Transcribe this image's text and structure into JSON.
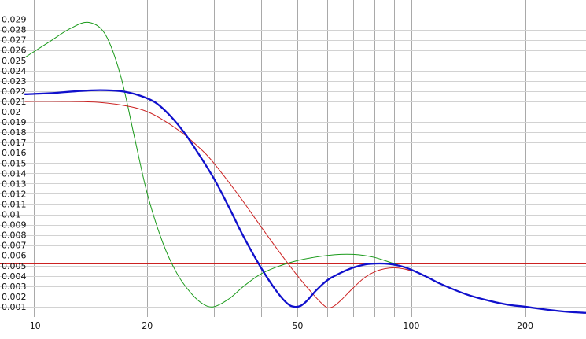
{
  "chart_data": {
    "type": "line",
    "x_scale": "log",
    "xlim": [
      9.5,
      290
    ],
    "ylim": [
      0,
      0.0305
    ],
    "grid": true,
    "x_ticks": [
      10,
      20,
      30,
      40,
      50,
      60,
      70,
      80,
      90,
      100,
      200
    ],
    "x_tick_labels": [
      {
        "value": 10,
        "label": "10"
      },
      {
        "value": 20,
        "label": "20"
      },
      {
        "value": 50,
        "label": "50"
      },
      {
        "value": 100,
        "label": "100"
      },
      {
        "value": 200,
        "label": "200"
      }
    ],
    "y_ticks": [
      0.001,
      0.002,
      0.003,
      0.004,
      0.005,
      0.006,
      0.007,
      0.008,
      0.009,
      0.01,
      0.011,
      0.012,
      0.013,
      0.014,
      0.015,
      0.016,
      0.017,
      0.018,
      0.019,
      0.02,
      0.021,
      0.022,
      0.023,
      0.024,
      0.025,
      0.026,
      0.027,
      0.028,
      0.029
    ],
    "y_tick_labels": [
      "0.001",
      "0.002",
      "0.003",
      "0.004",
      "0.005",
      "0.006",
      "0.007",
      "0.008",
      "0.009",
      "0.01",
      "0.011",
      "0.012",
      "0.013",
      "0.014",
      "0.015",
      "0.016",
      "0.017",
      "0.018",
      "0.019",
      "0.02",
      "0.021",
      "0.022",
      "0.023",
      "0.024",
      "0.025",
      "0.026",
      "0.027",
      "0.028",
      "0.029"
    ],
    "hlines": [
      {
        "y": 0.0053,
        "color": "#cc2222"
      },
      {
        "y": 0.0052,
        "color": "#cc2222"
      }
    ],
    "series": [
      {
        "color": "#1a9a1a",
        "stroke_width": 1,
        "x": [
          9.5,
          11,
          12.5,
          14,
          15.5,
          17,
          18.5,
          20,
          22,
          24,
          26,
          28,
          30,
          33,
          36,
          40,
          45,
          50,
          55,
          60,
          65,
          70,
          75,
          80,
          85,
          90,
          95
        ],
        "y": [
          0.0253,
          0.0268,
          0.0281,
          0.0287,
          0.0275,
          0.0235,
          0.0175,
          0.012,
          0.0072,
          0.0042,
          0.0024,
          0.0013,
          0.001,
          0.0018,
          0.003,
          0.0042,
          0.005,
          0.0055,
          0.0058,
          0.006,
          0.0061,
          0.0061,
          0.006,
          0.0058,
          0.0055,
          0.0052,
          0.0049
        ]
      },
      {
        "color": "#cc2222",
        "stroke_width": 1,
        "x": [
          9.5,
          12,
          15,
          18,
          20,
          22,
          25,
          28,
          30,
          35,
          40,
          45,
          50,
          55,
          58,
          60,
          62,
          65,
          70,
          75,
          80,
          85,
          90,
          95,
          100
        ],
        "y": [
          0.021,
          0.021,
          0.0209,
          0.0205,
          0.02,
          0.0192,
          0.0178,
          0.0162,
          0.015,
          0.0118,
          0.0088,
          0.0062,
          0.004,
          0.0022,
          0.0013,
          0.0009,
          0.001,
          0.0016,
          0.0028,
          0.0038,
          0.0044,
          0.0047,
          0.0048,
          0.0047,
          0.0045
        ]
      },
      {
        "color": "#1010cc",
        "stroke_width": 2.3,
        "x": [
          9.5,
          11,
          13,
          15,
          17,
          19,
          21,
          23,
          25,
          27,
          30,
          33,
          36,
          40,
          44,
          47,
          49,
          51,
          53,
          56,
          60,
          65,
          70,
          75,
          80,
          85,
          90,
          95,
          100,
          110,
          120,
          140,
          160,
          180,
          200,
          230,
          260,
          290
        ],
        "y": [
          0.0217,
          0.0218,
          0.022,
          0.0221,
          0.022,
          0.0216,
          0.0209,
          0.0196,
          0.018,
          0.0162,
          0.0135,
          0.0106,
          0.0078,
          0.0048,
          0.0025,
          0.0013,
          0.001,
          0.0011,
          0.0016,
          0.0026,
          0.0036,
          0.0043,
          0.0048,
          0.0051,
          0.0052,
          0.0052,
          0.0051,
          0.0049,
          0.0046,
          0.0039,
          0.0032,
          0.0022,
          0.0016,
          0.0012,
          0.001,
          0.0007,
          0.0005,
          0.0004
        ]
      }
    ]
  }
}
